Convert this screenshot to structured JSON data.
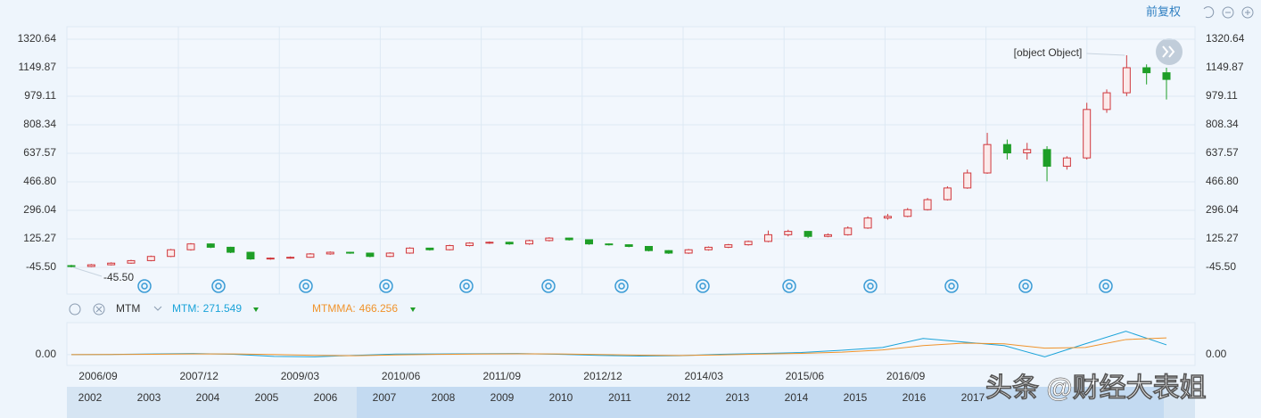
{
  "header": {
    "adjust": "前复权"
  },
  "chart_data": [
    {
      "type": "candlestick",
      "open": [
        -35,
        -40,
        -30,
        -20,
        -5,
        20,
        60,
        95,
        75,
        45,
        5,
        10,
        15,
        35,
        45,
        40,
        20,
        40,
        70,
        60,
        85,
        100,
        105,
        95,
        115,
        130,
        120,
        95,
        90,
        80,
        55,
        40,
        60,
        75,
        90,
        110,
        150,
        170,
        140,
        150,
        190,
        250,
        260,
        300,
        360,
        430,
        520,
        690,
        640,
        660,
        560,
        610,
        900,
        1000,
        1150,
        1120
      ],
      "high": [
        -30,
        -25,
        -15,
        0,
        25,
        65,
        100,
        98,
        78,
        48,
        14,
        20,
        40,
        50,
        48,
        42,
        45,
        75,
        72,
        90,
        105,
        110,
        108,
        120,
        135,
        132,
        122,
        98,
        92,
        82,
        58,
        65,
        80,
        95,
        115,
        175,
        180,
        172,
        158,
        200,
        260,
        275,
        310,
        370,
        440,
        540,
        760,
        720,
        700,
        680,
        620,
        940,
        1020,
        1224.59,
        1170,
        1150
      ],
      "low": [
        -45.5,
        -44,
        -34,
        -24,
        -9,
        16,
        55,
        70,
        40,
        0,
        0,
        6,
        12,
        30,
        36,
        15,
        16,
        36,
        55,
        56,
        80,
        95,
        90,
        90,
        110,
        115,
        90,
        85,
        75,
        50,
        35,
        35,
        55,
        70,
        85,
        105,
        140,
        130,
        135,
        145,
        185,
        240,
        255,
        295,
        355,
        425,
        515,
        600,
        600,
        470,
        540,
        600,
        880,
        980,
        1050,
        960
      ],
      "close": [
        -40,
        -30,
        -20,
        -5,
        20,
        60,
        95,
        75,
        45,
        5,
        10,
        15,
        35,
        45,
        40,
        20,
        40,
        70,
        60,
        85,
        100,
        105,
        95,
        115,
        130,
        120,
        95,
        90,
        80,
        55,
        40,
        60,
        75,
        90,
        110,
        150,
        170,
        140,
        150,
        190,
        250,
        260,
        300,
        360,
        430,
        520,
        690,
        640,
        660,
        560,
        610,
        900,
        1000,
        1150,
        1120,
        1080
      ],
      "up_color": "#d0383d",
      "down_color": "#1e9e27",
      "ylim": [
        -205.6,
        1395.4
      ],
      "yticks": [
        1320.64,
        1149.87,
        979.11,
        808.34,
        637.57,
        {
          "value": 466.8,
          "label": "466.80"
        },
        296.04,
        125.27,
        {
          "value": -45.5,
          "label": "-45.50"
        }
      ],
      "annotations": [
        {
          "value": 1224.59
        },
        {
          "value": -45.5,
          "label": "-45.50"
        }
      ],
      "x_labels": [
        "2006/09",
        "2007/12",
        "2009/03",
        "2010/06",
        "2011/09",
        "2012/12",
        "2014/03",
        "2015/06",
        "2016/09"
      ],
      "grid": true
    },
    {
      "type": "line",
      "indicator": "MTM",
      "series": [
        {
          "name": "MTM:",
          "color": "#1aa3d9",
          "values": [
            0,
            5,
            20,
            30,
            10,
            -50,
            -60,
            -20,
            15,
            20,
            25,
            30,
            10,
            -20,
            -40,
            -30,
            10,
            30,
            60,
            120,
            200,
            450,
            350,
            250,
            -60,
            300,
            650,
            271.549
          ]
        },
        {
          "name": "MTMMA:",
          "color": "#f0932b",
          "values": [
            0,
            3,
            10,
            18,
            20,
            5,
            -20,
            -30,
            -10,
            8,
            15,
            22,
            20,
            5,
            -15,
            -25,
            -10,
            15,
            35,
            70,
            130,
            250,
            320,
            300,
            180,
            200,
            420,
            466.256
          ]
        }
      ],
      "ylim": [
        -300,
        815
      ],
      "yticks": [
        {
          "value": 0,
          "label": "0.00"
        }
      ]
    }
  ],
  "navigator": {
    "years": [
      "2002",
      "2003",
      "2004",
      "2005",
      "2006",
      "2007",
      "2008",
      "2009",
      "2010",
      "2011",
      "2012",
      "2013",
      "2014",
      "2015",
      "2016",
      "2017"
    ]
  },
  "watermark": "头条 @财经大表姐"
}
